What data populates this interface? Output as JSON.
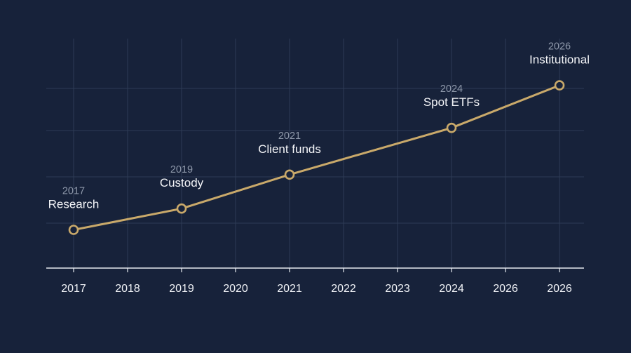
{
  "colors": {
    "background": "#17223a",
    "line": "#c9a96a",
    "grid": "#2e3b55",
    "axis": "#e6e9ef"
  },
  "chart_data": {
    "type": "line",
    "title": "",
    "xlabel": "",
    "ylabel": "",
    "grid": true,
    "y_axis_visible": false,
    "categories": [
      "2017",
      "2018",
      "2019",
      "2020",
      "2021",
      "2022",
      "2023",
      "2024",
      "2026",
      "2026"
    ],
    "series": [
      {
        "values": [
          0.6,
          null,
          1.1,
          null,
          1.9,
          null,
          null,
          3.0,
          null,
          4.0
        ]
      }
    ],
    "ylim": [
      -0.3,
      5.1
    ],
    "annotations": [
      {
        "index": 0,
        "year": "2017",
        "label": "Research"
      },
      {
        "index": 2,
        "year": "2019",
        "label": "Custody"
      },
      {
        "index": 4,
        "year": "2021",
        "label": "Client funds"
      },
      {
        "index": 7,
        "year": "2024",
        "label": "Spot ETFs"
      },
      {
        "index": 9,
        "year": "2026",
        "label": "Institutional"
      }
    ]
  }
}
